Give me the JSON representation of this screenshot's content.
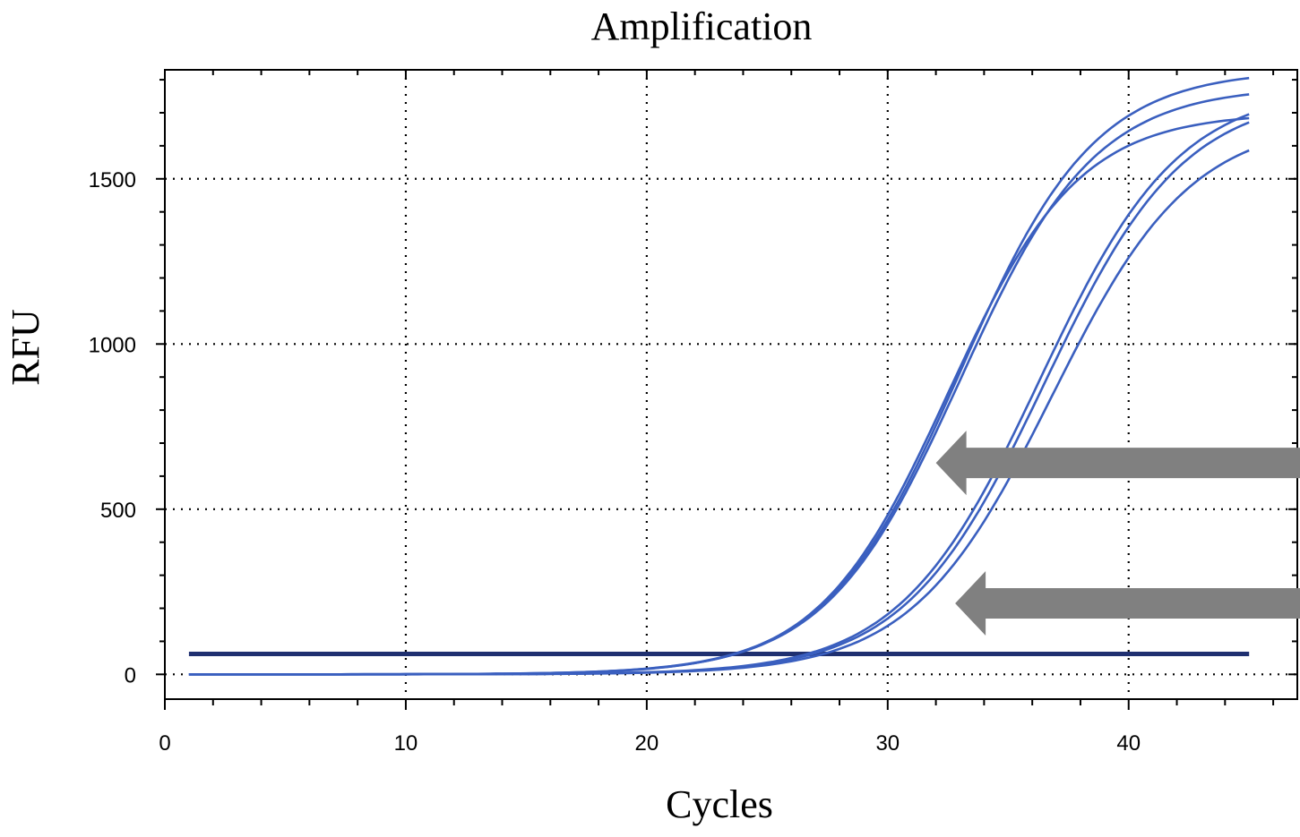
{
  "chart_data": {
    "type": "line",
    "title": "Amplification",
    "xlabel": "Cycles",
    "ylabel": "RFU",
    "xlim": [
      0,
      47
    ],
    "ylim": [
      -75,
      1830
    ],
    "x_ticks": [
      0,
      10,
      20,
      30,
      40
    ],
    "y_ticks": [
      0,
      500,
      1000,
      1500
    ],
    "grid": true,
    "line_color": "#3a5fbf",
    "threshold_color": "#1f3070",
    "arrow_color": "#808080",
    "threshold": {
      "value": 62,
      "x_range": [
        1,
        45
      ]
    },
    "series": [
      {
        "sigmoid": {
          "base": 0,
          "plateau": 1830,
          "midpoint": 33.0,
          "slope": 2.8
        }
      },
      {
        "sigmoid": {
          "base": 0,
          "plateau": 1780,
          "midpoint": 33.0,
          "slope": 2.8
        }
      },
      {
        "sigmoid": {
          "base": 0,
          "plateau": 1700,
          "midpoint": 32.5,
          "slope": 2.7
        }
      },
      {
        "sigmoid": {
          "base": 0,
          "plateau": 1760,
          "midpoint": 36.5,
          "slope": 2.9
        }
      },
      {
        "sigmoid": {
          "base": 0,
          "plateau": 1780,
          "midpoint": 36.3,
          "slope": 2.9
        }
      },
      {
        "sigmoid": {
          "base": 0,
          "plateau": 1680,
          "midpoint": 36.8,
          "slope": 2.9
        }
      }
    ],
    "annotations": [
      {
        "type": "arrow",
        "points_to": [
          32.0,
          640
        ],
        "direction": "left"
      },
      {
        "type": "arrow",
        "points_to": [
          32.8,
          215
        ],
        "direction": "left"
      }
    ]
  }
}
